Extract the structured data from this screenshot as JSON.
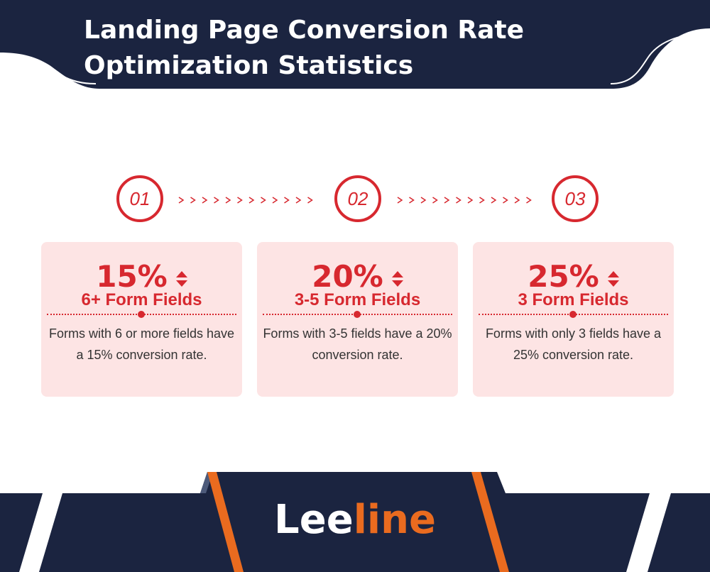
{
  "header": {
    "title_lines": [
      "Landing Page Conversion Rate",
      "Optimization Statistics"
    ]
  },
  "steps": [
    "01",
    "02",
    "03"
  ],
  "cards": [
    {
      "stat": "15%",
      "label": "6+ Form Fields",
      "description": "Forms with 6 or more fields have a 15% conversion rate."
    },
    {
      "stat": "20%",
      "label": "3-5 Form Fields",
      "description": "Forms with 3-5 fields have a 20% conversion rate."
    },
    {
      "stat": "25%",
      "label": "3 Form Fields",
      "description": "Forms with only 3 fields have a 25% conversion rate."
    }
  ],
  "footer": {
    "logo": [
      "Lee",
      "line"
    ]
  }
}
